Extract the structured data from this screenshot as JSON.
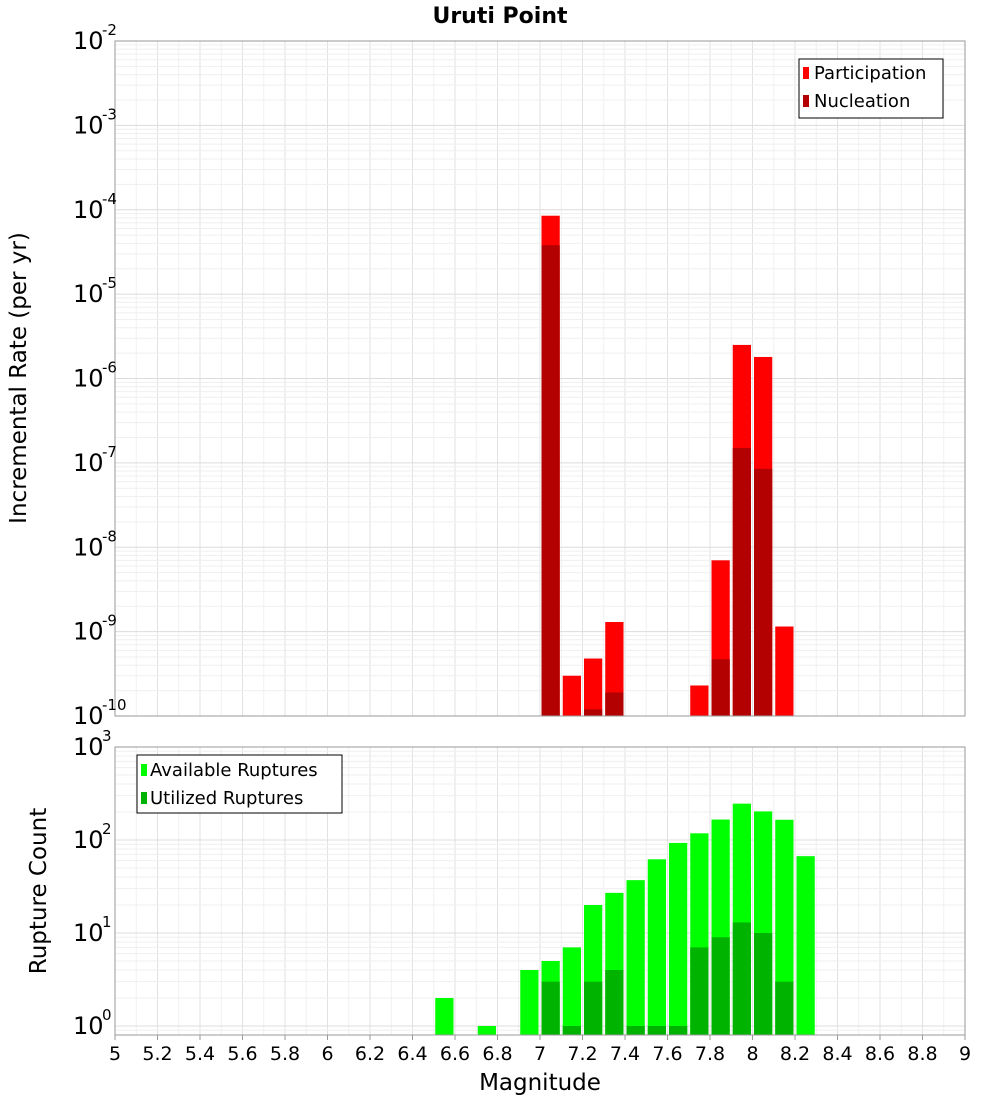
{
  "chart_data": [
    {
      "type": "bar",
      "title": "Uruti Point",
      "xlabel": "",
      "ylabel": "Incremental Rate (per yr)",
      "yscale": "log",
      "ylim": [
        1e-10,
        0.01
      ],
      "xlim": [
        5,
        9
      ],
      "bin_width": 0.1,
      "grid": true,
      "legend_position": "top-right",
      "y_ticks": [
        {
          "base": "10",
          "exp": "-10",
          "value": 1e-10
        },
        {
          "base": "10",
          "exp": "-9",
          "value": 1e-09
        },
        {
          "base": "10",
          "exp": "-8",
          "value": 1e-08
        },
        {
          "base": "10",
          "exp": "-7",
          "value": 1e-07
        },
        {
          "base": "10",
          "exp": "-6",
          "value": 1e-06
        },
        {
          "base": "10",
          "exp": "-5",
          "value": 1e-05
        },
        {
          "base": "10",
          "exp": "-4",
          "value": 0.0001
        },
        {
          "base": "10",
          "exp": "-3",
          "value": 0.001
        },
        {
          "base": "10",
          "exp": "-2",
          "value": 0.01
        }
      ],
      "series": [
        {
          "name": "Participation",
          "color": "#ff0000",
          "points": [
            {
              "x": 7.05,
              "y": 8.5e-05
            },
            {
              "x": 7.15,
              "y": 3e-10
            },
            {
              "x": 7.25,
              "y": 4.8e-10
            },
            {
              "x": 7.35,
              "y": 1.3e-09
            },
            {
              "x": 7.75,
              "y": 2.3e-10
            },
            {
              "x": 7.85,
              "y": 7e-09
            },
            {
              "x": 7.95,
              "y": 2.5e-06
            },
            {
              "x": 8.05,
              "y": 1.8e-06
            },
            {
              "x": 8.15,
              "y": 1.15e-09
            }
          ]
        },
        {
          "name": "Nucleation",
          "color": "#b30000",
          "points": [
            {
              "x": 7.05,
              "y": 3.8e-05
            },
            {
              "x": 7.25,
              "y": 1.2e-10
            },
            {
              "x": 7.35,
              "y": 1.9e-10
            },
            {
              "x": 7.85,
              "y": 4.7e-10
            },
            {
              "x": 7.95,
              "y": 1.5e-07
            },
            {
              "x": 8.05,
              "y": 8.5e-08
            }
          ]
        }
      ]
    },
    {
      "type": "bar",
      "title": "",
      "xlabel": "Magnitude",
      "ylabel": "Rupture Count",
      "yscale": "log",
      "ylim": [
        0.8,
        1000
      ],
      "xlim": [
        5,
        9
      ],
      "bin_width": 0.1,
      "grid": true,
      "legend_position": "top-left",
      "x_ticks": [
        "5",
        "5.2",
        "5.4",
        "5.6",
        "5.8",
        "6",
        "6.2",
        "6.4",
        "6.6",
        "6.8",
        "7",
        "7.2",
        "7.4",
        "7.6",
        "7.8",
        "8",
        "8.2",
        "8.4",
        "8.6",
        "8.8",
        "9"
      ],
      "y_ticks": [
        {
          "base": "10",
          "exp": "0",
          "value": 1
        },
        {
          "base": "10",
          "exp": "1",
          "value": 10
        },
        {
          "base": "10",
          "exp": "2",
          "value": 100
        },
        {
          "base": "10",
          "exp": "3",
          "value": 1000
        }
      ],
      "series": [
        {
          "name": "Available Ruptures",
          "color": "#00ff00",
          "points": [
            {
              "x": 6.55,
              "y": 2
            },
            {
              "x": 6.75,
              "y": 1
            },
            {
              "x": 6.95,
              "y": 4
            },
            {
              "x": 7.05,
              "y": 5
            },
            {
              "x": 7.15,
              "y": 7
            },
            {
              "x": 7.25,
              "y": 20
            },
            {
              "x": 7.35,
              "y": 27
            },
            {
              "x": 7.45,
              "y": 37
            },
            {
              "x": 7.55,
              "y": 62
            },
            {
              "x": 7.65,
              "y": 93
            },
            {
              "x": 7.75,
              "y": 118
            },
            {
              "x": 7.85,
              "y": 166
            },
            {
              "x": 7.95,
              "y": 246
            },
            {
              "x": 8.05,
              "y": 203
            },
            {
              "x": 8.15,
              "y": 165
            },
            {
              "x": 8.25,
              "y": 67
            }
          ]
        },
        {
          "name": "Utilized Ruptures",
          "color": "#00b300",
          "points": [
            {
              "x": 7.05,
              "y": 3
            },
            {
              "x": 7.15,
              "y": 1
            },
            {
              "x": 7.25,
              "y": 3
            },
            {
              "x": 7.35,
              "y": 4
            },
            {
              "x": 7.45,
              "y": 1
            },
            {
              "x": 7.55,
              "y": 1
            },
            {
              "x": 7.65,
              "y": 1
            },
            {
              "x": 7.75,
              "y": 7
            },
            {
              "x": 7.85,
              "y": 9
            },
            {
              "x": 7.95,
              "y": 13
            },
            {
              "x": 8.05,
              "y": 10
            },
            {
              "x": 8.15,
              "y": 3
            }
          ]
        }
      ]
    }
  ]
}
